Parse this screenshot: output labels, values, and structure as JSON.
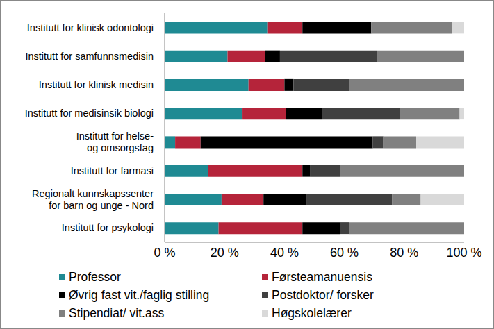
{
  "chart_data": {
    "type": "bar",
    "orientation": "horizontal",
    "stacked": true,
    "grid": false,
    "legend": "bottom",
    "categories": [
      "Institutt for klinisk odontologi",
      "Institutt for samfunnsmedisin",
      "Institutt for klinisk medisin",
      "Institutt for medisinsik biologi",
      "Institutt for helse-\nog omsorgsfag",
      "Institutt for farmasi",
      "Regionalt kunnskapssenter\nfor barn og unge - Nord",
      "Institutt for psykologi"
    ],
    "series": [
      {
        "name": "Professor",
        "color": "#1f8a93",
        "values": [
          34.5,
          21,
          28,
          26,
          3.5,
          14.5,
          19,
          18
        ]
      },
      {
        "name": "Førsteamanuensis",
        "color": "#b5243a",
        "values": [
          11.5,
          12.5,
          12,
          14.5,
          8.5,
          31.5,
          14,
          28
        ]
      },
      {
        "name": "Øvrig fast vit./faglig stilling",
        "color": "#000000",
        "values": [
          23,
          5,
          3,
          12,
          57.5,
          2.5,
          14.5,
          12.5
        ]
      },
      {
        "name": "Postdoktor/ forsker",
        "color": "#404040",
        "values": [
          0,
          32.5,
          18.5,
          26,
          3.5,
          10,
          28.5,
          3
        ]
      },
      {
        "name": "Stipendiat/ vit.ass",
        "color": "#808080",
        "values": [
          27,
          29,
          38.5,
          20,
          11,
          41.5,
          9.5,
          38.5
        ]
      },
      {
        "name": "Høgskolelærer",
        "color": "#d9d9d9",
        "values": [
          4,
          0,
          0,
          1.5,
          16,
          0,
          14.5,
          0
        ]
      }
    ],
    "xlim": [
      0,
      100
    ],
    "xticks": [
      {
        "value": 0,
        "label": "0 %"
      },
      {
        "value": 20,
        "label": "20 %"
      },
      {
        "value": 40,
        "label": "40 %"
      },
      {
        "value": 60,
        "label": "60 %"
      },
      {
        "value": 80,
        "label": "80 %"
      },
      {
        "value": 100,
        "label": "100 %"
      }
    ]
  }
}
